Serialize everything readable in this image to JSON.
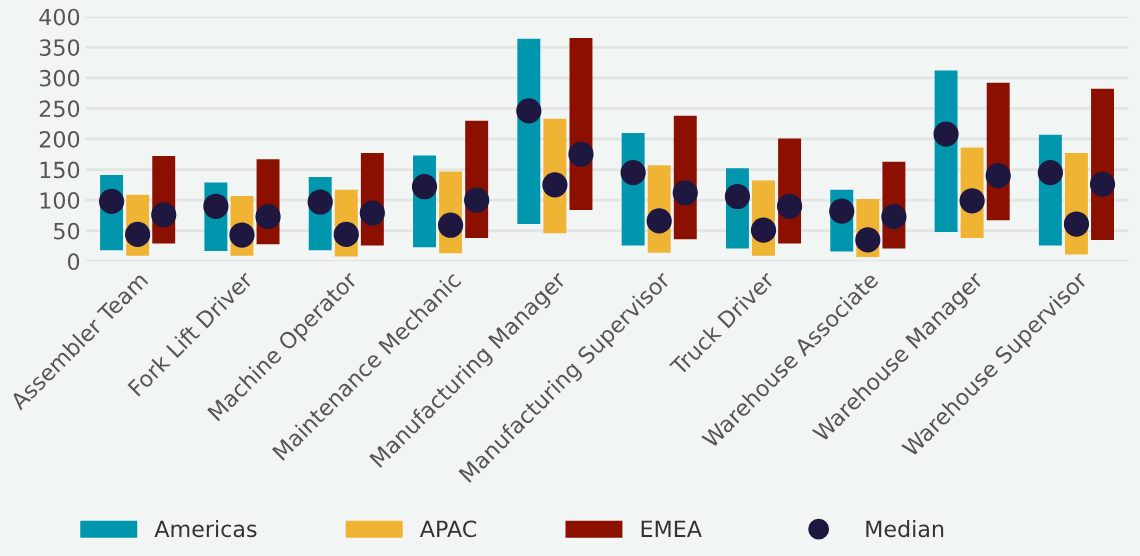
{
  "chart_data": {
    "type": "bar",
    "categories": [
      "Assembler Team",
      "Fork Lift Driver",
      "Machine Operator",
      "Maintenance Mechanic",
      "Manufacturing Manager",
      "Manufacturing Supervisor",
      "Truck Driver",
      "Warehouse Associate",
      "Warehouse Manager",
      "Warehouse Supervisor"
    ],
    "series": [
      {
        "name": "Americas",
        "color": "#0096ad",
        "base": [
          18,
          17,
          18,
          23,
          61,
          26,
          21,
          16,
          48,
          26
        ],
        "values": [
          123,
          112,
          120,
          150,
          303,
          184,
          131,
          101,
          264,
          181
        ]
      },
      {
        "name": "APAC",
        "color": "#f0b435",
        "base": [
          9,
          9,
          8,
          13,
          46,
          14,
          9,
          7,
          38,
          11
        ],
        "values": [
          100,
          98,
          109,
          134,
          187,
          143,
          123,
          95,
          148,
          166
        ]
      },
      {
        "name": "EMEA",
        "color": "#8b1000",
        "base": [
          29,
          28,
          26,
          38,
          84,
          36,
          29,
          21,
          67,
          35
        ],
        "values": [
          143,
          139,
          151,
          192,
          281,
          202,
          172,
          142,
          225,
          247
        ]
      },
      {
        "name": "Median",
        "type": "scatter",
        "color": "#1e1840",
        "x": [
          "Assembler Team",
          "Fork Lift Driver",
          "Machine Operator",
          "Maintenance Mechanic",
          "Manufacturing Manager",
          "Manufacturing Supervisor",
          "Truck Driver",
          "Warehouse Associate",
          "Warehouse Manager",
          "Warehouse Supervisor"
        ],
        "values": [
          98,
          90,
          97,
          122,
          246,
          145,
          106,
          82,
          208,
          145
        ]
      },
      {
        "type": "scatter",
        "color": "#1e1840",
        "x": [
          "Assembler Team",
          "Fork Lift Driver",
          "Machine Operator",
          "Maintenance Mechanic",
          "Manufacturing Manager",
          "Manufacturing Supervisor",
          "Truck Driver",
          "Warehouse Associate",
          "Warehouse Manager",
          "Warehouse Supervisor"
        ],
        "values": [
          44,
          43,
          44,
          59,
          125,
          66,
          51,
          35,
          99,
          61
        ]
      },
      {
        "type": "scatter",
        "color": "#1e1840",
        "x": [
          "Assembler Team",
          "Fork Lift Driver",
          "Machine Operator",
          "Maintenance Mechanic",
          "Manufacturing Manager",
          "Manufacturing Supervisor",
          "Truck Driver",
          "Warehouse Associate",
          "Warehouse Manager",
          "Warehouse Supervisor"
        ],
        "values": [
          76,
          73,
          79,
          100,
          175,
          112,
          90,
          73,
          140,
          126
        ]
      }
    ],
    "ylim": [
      0,
      400
    ],
    "yticks": [
      0,
      50,
      100,
      150,
      200,
      250,
      300,
      350,
      400
    ],
    "grid": "y",
    "legend": "bottom",
    "marker": "circle"
  }
}
